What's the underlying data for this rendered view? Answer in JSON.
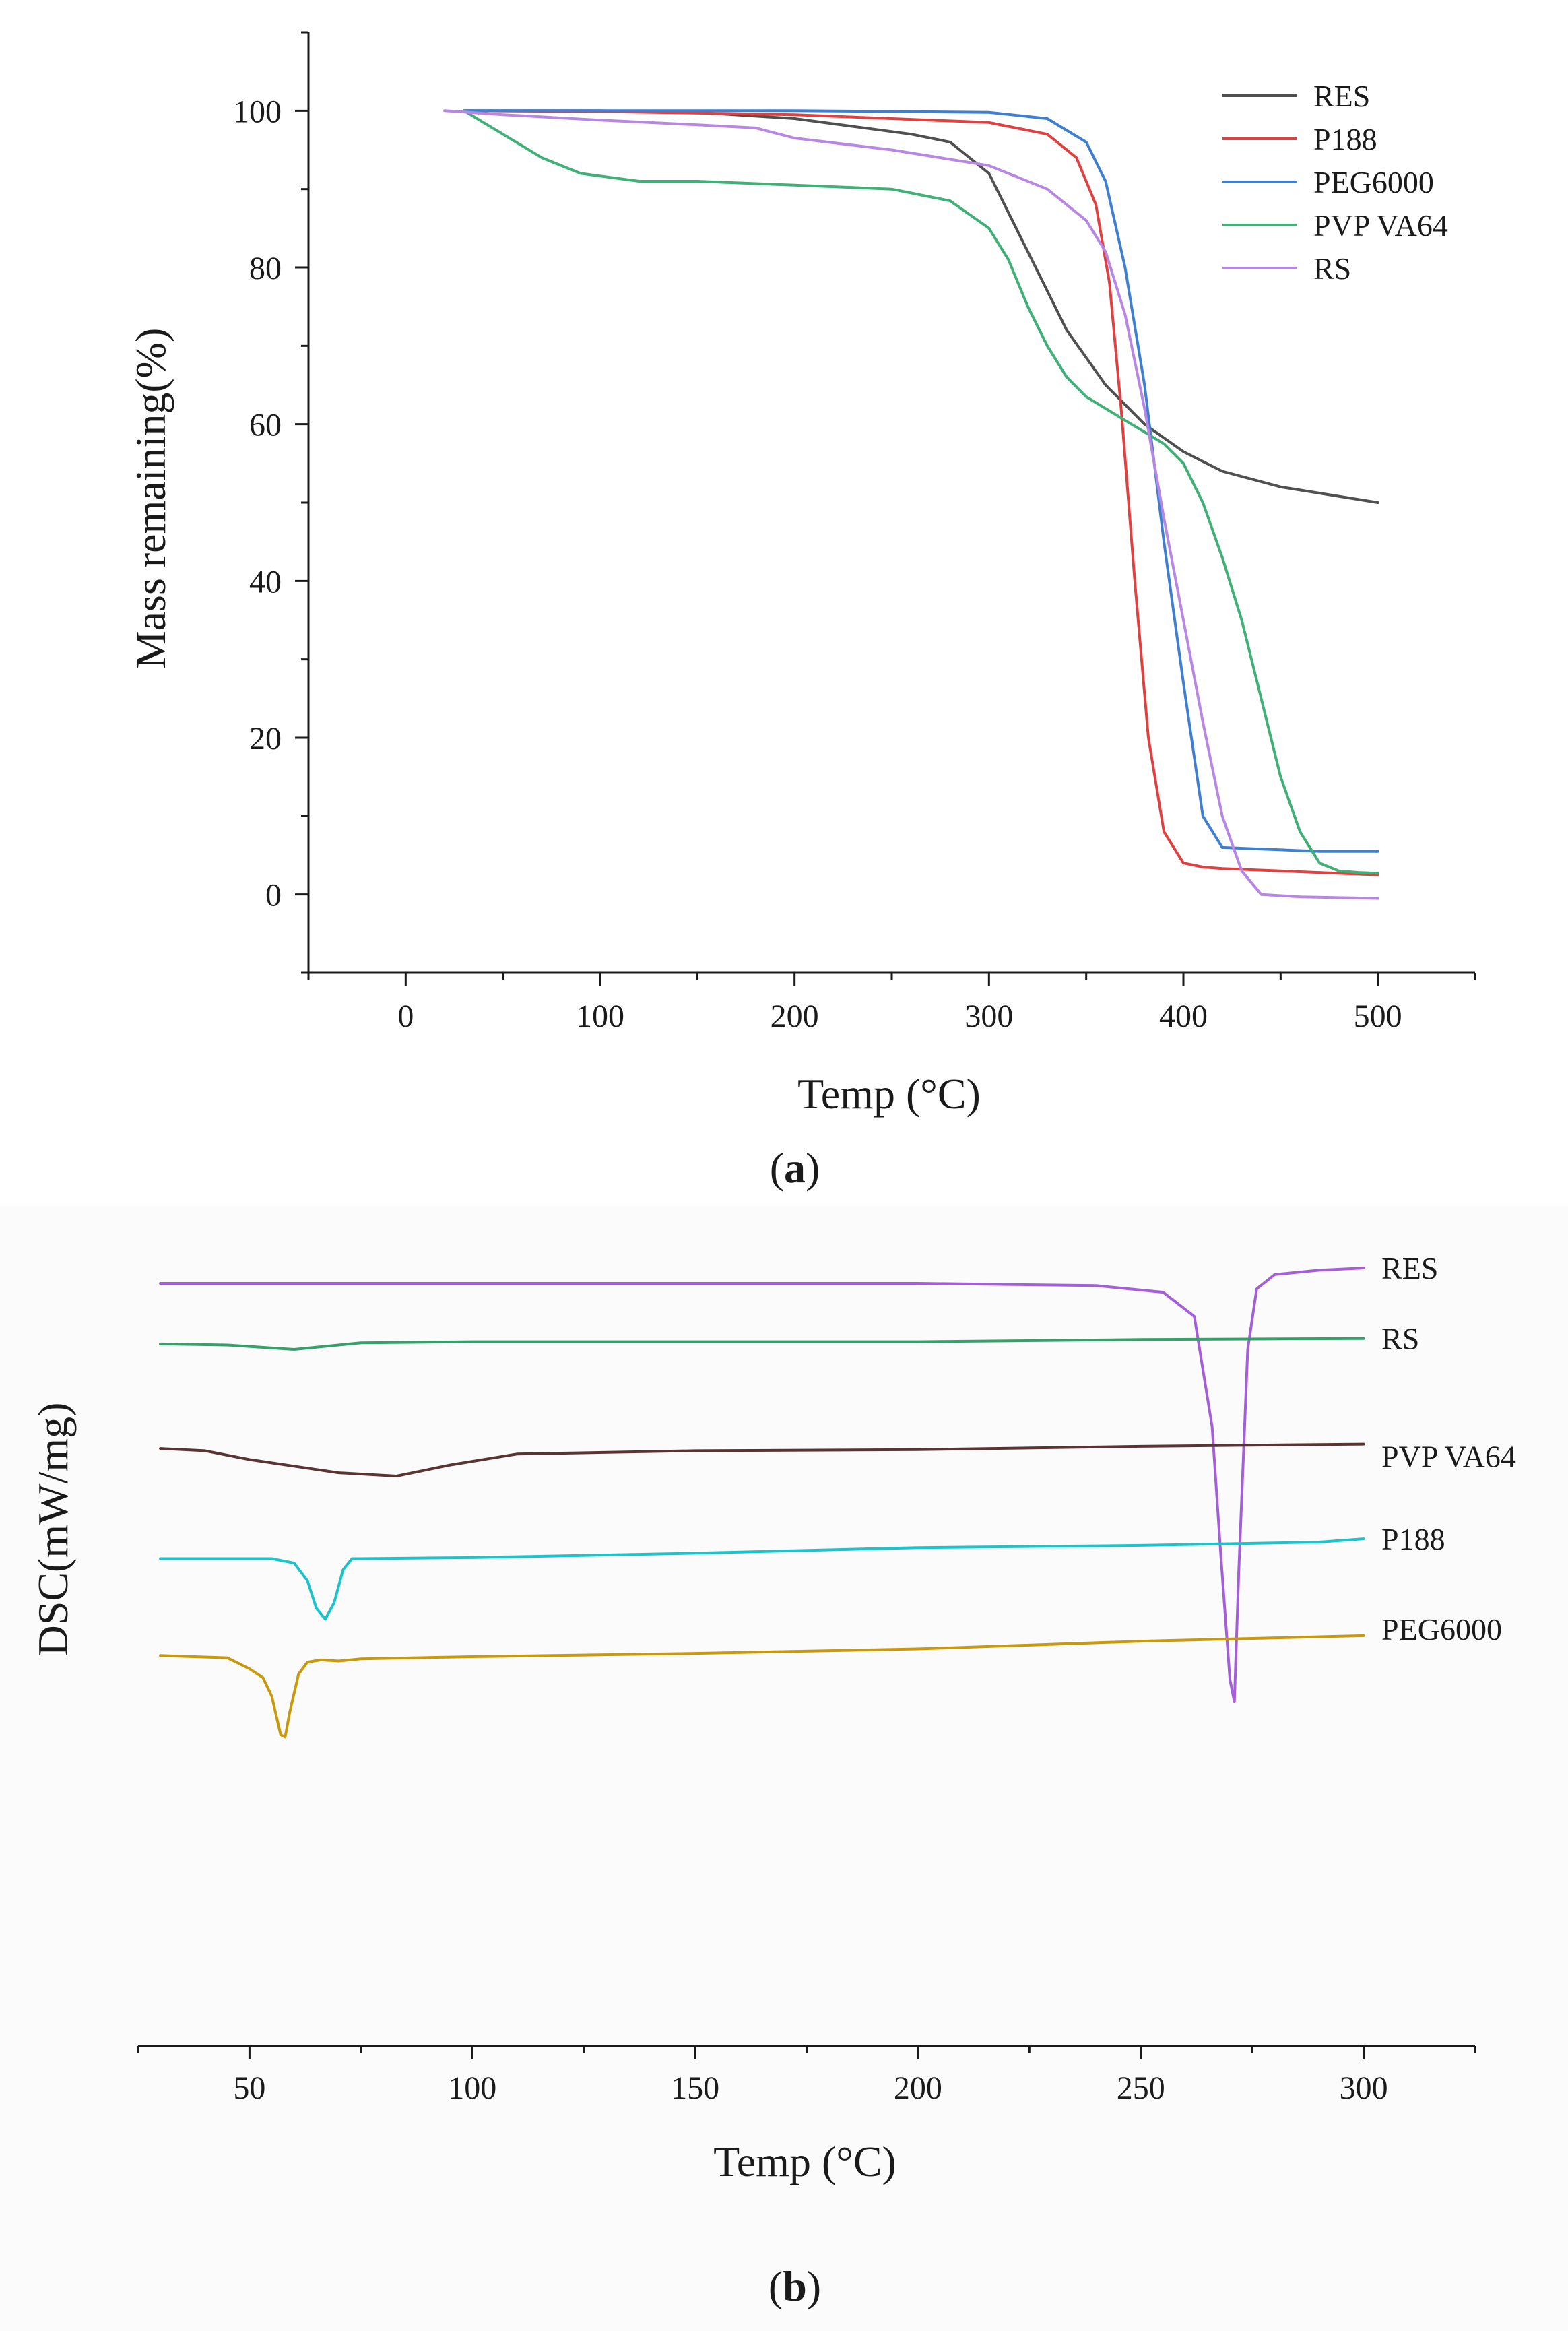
{
  "chart_data": [
    {
      "type": "line",
      "panel_label": "a",
      "title": "",
      "xlabel": "Temp (°C)",
      "ylabel": "Mass remaining(%)",
      "xlim": [
        -50,
        550
      ],
      "ylim": [
        -10,
        110
      ],
      "xticks": [
        0,
        100,
        200,
        300,
        400,
        500
      ],
      "yticks": [
        0,
        20,
        40,
        60,
        80,
        100
      ],
      "xtick_labels": [
        "0",
        "100",
        "200",
        "300",
        "400",
        "500"
      ],
      "ytick_labels": [
        "0",
        "20",
        "40",
        "60",
        "80",
        "100"
      ],
      "grid": false,
      "legend_position": "top-right",
      "series": [
        {
          "name": "RES",
          "color": "#505050",
          "x": [
            30,
            100,
            150,
            200,
            230,
            260,
            280,
            300,
            320,
            340,
            360,
            380,
            400,
            420,
            450,
            500
          ],
          "y": [
            100,
            100,
            99.8,
            99,
            98,
            97,
            96,
            92,
            82,
            72,
            65,
            60,
            56.5,
            54,
            52,
            50
          ]
        },
        {
          "name": "P188",
          "color": "#e04040",
          "x": [
            30,
            100,
            200,
            250,
            300,
            330,
            345,
            355,
            362,
            368,
            375,
            382,
            390,
            400,
            410,
            420,
            450,
            500
          ],
          "y": [
            100,
            99.9,
            99.5,
            99,
            98.5,
            97,
            94,
            88,
            78,
            62,
            40,
            20,
            8,
            4,
            3.5,
            3.3,
            3,
            2.5
          ]
        },
        {
          "name": "PEG6000",
          "color": "#3f7fd0",
          "x": [
            30,
            100,
            200,
            300,
            330,
            350,
            360,
            370,
            380,
            390,
            400,
            410,
            420,
            440,
            470,
            500
          ],
          "y": [
            100,
            100,
            100,
            99.8,
            99,
            96,
            91,
            80,
            65,
            45,
            27,
            10,
            6,
            5.8,
            5.5,
            5.5
          ]
        },
        {
          "name": "PVP VA64",
          "color": "#3fb076",
          "x": [
            30,
            50,
            70,
            90,
            120,
            150,
            200,
            250,
            280,
            300,
            310,
            320,
            330,
            340,
            350,
            360,
            370,
            380,
            390,
            400,
            410,
            420,
            430,
            440,
            450,
            460,
            470,
            480,
            490,
            500
          ],
          "y": [
            100,
            97,
            94,
            92,
            91,
            91,
            90.5,
            90,
            88.5,
            85,
            81,
            75,
            70,
            66,
            63.5,
            62,
            60.5,
            59,
            57.5,
            55,
            50,
            43,
            35,
            25,
            15,
            8,
            4,
            3,
            2.8,
            2.7
          ]
        },
        {
          "name": "RS",
          "color": "#b787e3",
          "x": [
            20,
            50,
            100,
            150,
            180,
            200,
            250,
            300,
            330,
            350,
            360,
            370,
            380,
            390,
            400,
            410,
            420,
            430,
            440,
            460,
            500
          ],
          "y": [
            100,
            99.5,
            98.8,
            98.2,
            97.8,
            96.5,
            95,
            93,
            90,
            86,
            82,
            74,
            62,
            48,
            35,
            22,
            10,
            3,
            0,
            -0.3,
            -0.5
          ]
        }
      ]
    },
    {
      "type": "line",
      "panel_label": "b",
      "title": "",
      "xlabel": "Temp (°C)",
      "ylabel": "DSC(mW/mg)",
      "xlim": [
        25,
        325
      ],
      "xticks": [
        50,
        100,
        150,
        200,
        250,
        300
      ],
      "xtick_labels": [
        "50",
        "100",
        "150",
        "200",
        "250",
        "300"
      ],
      "y_axis_shown": false,
      "ylim": [
        -6.2,
        0.2
      ],
      "grid": false,
      "legend_position": "inline labels at right end of each curve",
      "series": [
        {
          "name": "RES",
          "color": "#a45ed8",
          "x": [
            30,
            100,
            200,
            240,
            255,
            262,
            266,
            268,
            270,
            271,
            272,
            274,
            276,
            280,
            290,
            300
          ],
          "y": [
            0,
            0,
            0,
            -0.02,
            -0.08,
            -0.3,
            -1.3,
            -2.5,
            -3.6,
            -3.8,
            -2.6,
            -0.6,
            -0.05,
            0.08,
            0.12,
            0.14
          ]
        },
        {
          "name": "RS",
          "color": "#35a06a",
          "x": [
            30,
            45,
            60,
            75,
            100,
            150,
            200,
            250,
            300
          ],
          "y": [
            -0.55,
            -0.56,
            -0.6,
            -0.54,
            -0.53,
            -0.53,
            -0.53,
            -0.51,
            -0.5
          ]
        },
        {
          "name": "PVP VA64",
          "color": "#5a3333",
          "x": [
            30,
            40,
            50,
            60,
            70,
            83,
            95,
            110,
            150,
            200,
            250,
            300
          ],
          "y": [
            -1.5,
            -1.52,
            -1.6,
            -1.66,
            -1.72,
            -1.75,
            -1.65,
            -1.55,
            -1.52,
            -1.51,
            -1.48,
            -1.46
          ]
        },
        {
          "name": "P188",
          "color": "#1bc4ca",
          "x": [
            30,
            55,
            60,
            63,
            65,
            67,
            69,
            71,
            73,
            75,
            100,
            150,
            200,
            250,
            290,
            300
          ],
          "y": [
            -2.5,
            -2.5,
            -2.54,
            -2.7,
            -2.95,
            -3.05,
            -2.9,
            -2.6,
            -2.5,
            -2.5,
            -2.49,
            -2.45,
            -2.4,
            -2.38,
            -2.35,
            -2.32
          ]
        },
        {
          "name": "PEG6000",
          "color": "#c9980c",
          "x": [
            30,
            45,
            50,
            53,
            55,
            57,
            58,
            59,
            61,
            63,
            66,
            70,
            75,
            100,
            150,
            200,
            250,
            300
          ],
          "y": [
            -3.38,
            -3.4,
            -3.5,
            -3.58,
            -3.75,
            -4.1,
            -4.12,
            -3.9,
            -3.55,
            -3.44,
            -3.42,
            -3.43,
            -3.41,
            -3.39,
            -3.36,
            -3.32,
            -3.25,
            -3.2
          ]
        }
      ]
    }
  ]
}
